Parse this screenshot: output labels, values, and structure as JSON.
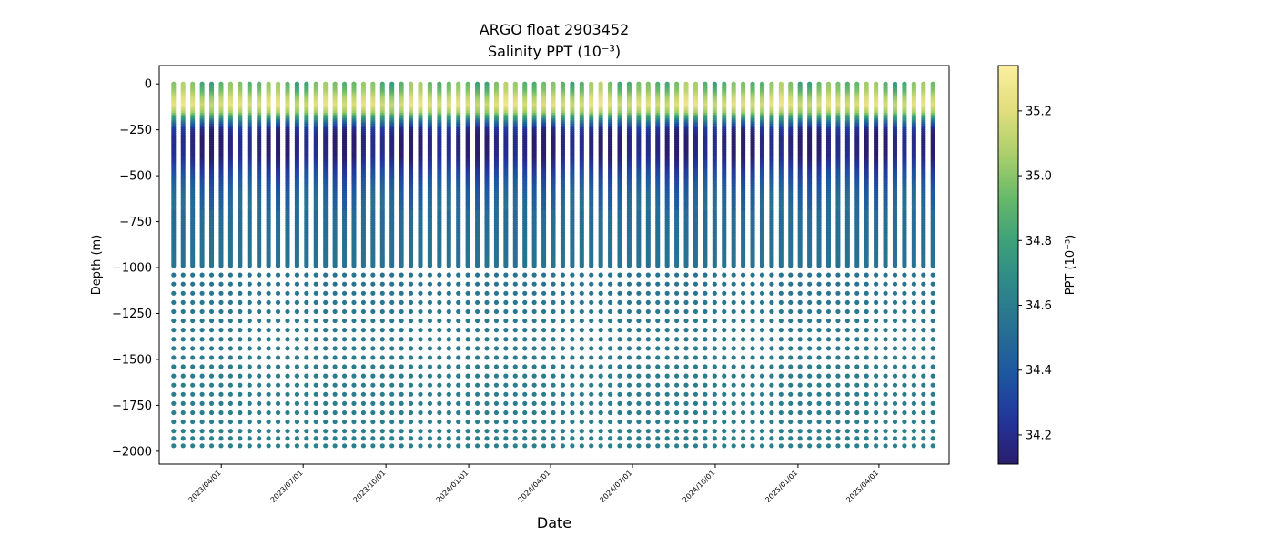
{
  "chart_data": {
    "type": "scatter",
    "title": "ARGO float 2903452",
    "subtitle": "Salinity PPT (10⁻³)",
    "xlabel": "Date",
    "ylabel": "Depth (m)",
    "colorbar_label": "PPT (10⁻³)",
    "x_range": [
      "2023-01-22",
      "2025-06-18"
    ],
    "ylim": [
      -2070,
      100
    ],
    "color_range": [
      34.11,
      35.34
    ],
    "colormap": "haline",
    "colormap_stops": [
      "#2a1d6b",
      "#23359b",
      "#1d56a0",
      "#276e93",
      "#2d878a",
      "#3ca07a",
      "#67b96a",
      "#abcf6b",
      "#e1de7d",
      "#fcef9e"
    ],
    "grid": false,
    "legend": "none",
    "x_ticks": [
      {
        "date": "2023-04-01",
        "label": "2023/04/01"
      },
      {
        "date": "2023-07-01",
        "label": "2023/07/01"
      },
      {
        "date": "2023-10-01",
        "label": "2023/10/01"
      },
      {
        "date": "2024-01-01",
        "label": "2024/01/01"
      },
      {
        "date": "2024-04-01",
        "label": "2024/04/01"
      },
      {
        "date": "2024-07-01",
        "label": "2024/07/01"
      },
      {
        "date": "2024-10-01",
        "label": "2024/10/01"
      },
      {
        "date": "2025-01-01",
        "label": "2025/01/01"
      },
      {
        "date": "2025-04-01",
        "label": "2025/04/01"
      }
    ],
    "y_ticks": [
      {
        "value": 0,
        "label": "0"
      },
      {
        "value": -250,
        "label": "−250"
      },
      {
        "value": -500,
        "label": "−500"
      },
      {
        "value": -750,
        "label": "−750"
      },
      {
        "value": -1000,
        "label": "−1000"
      },
      {
        "value": -1250,
        "label": "−1250"
      },
      {
        "value": -1500,
        "label": "−1500"
      },
      {
        "value": -1750,
        "label": "−1750"
      },
      {
        "value": -2000,
        "label": "−2000"
      }
    ],
    "colorbar_ticks": [
      {
        "value": 34.2,
        "label": "34.2"
      },
      {
        "value": 34.4,
        "label": "34.4"
      },
      {
        "value": 34.6,
        "label": "34.6"
      },
      {
        "value": 34.8,
        "label": "34.8"
      },
      {
        "value": 35.0,
        "label": "35.0"
      },
      {
        "value": 35.2,
        "label": "35.2"
      }
    ],
    "profiles": {
      "first_date": "2023-02-07",
      "last_date": "2025-05-31",
      "count": 81,
      "spacing_days": 10.5
    },
    "depth_levels_m": [
      0,
      -10,
      -20,
      -30,
      -40,
      -50,
      -60,
      -70,
      -80,
      -90,
      -100,
      -110,
      -120,
      -130,
      -140,
      -150,
      -160,
      -170,
      -180,
      -190,
      -200,
      -210,
      -220,
      -230,
      -240,
      -250,
      -260,
      -270,
      -280,
      -290,
      -300,
      -310,
      -320,
      -330,
      -340,
      -350,
      -360,
      -370,
      -380,
      -390,
      -400,
      -410,
      -420,
      -430,
      -440,
      -450,
      -460,
      -470,
      -480,
      -490,
      -500,
      -510,
      -520,
      -530,
      -540,
      -550,
      -560,
      -570,
      -580,
      -590,
      -600,
      -610,
      -620,
      -630,
      -640,
      -650,
      -660,
      -670,
      -680,
      -690,
      -700,
      -710,
      -720,
      -730,
      -740,
      -750,
      -760,
      -770,
      -780,
      -790,
      -800,
      -810,
      -820,
      -830,
      -840,
      -850,
      -860,
      -870,
      -880,
      -890,
      -900,
      -910,
      -920,
      -930,
      -940,
      -950,
      -960,
      -970,
      -980,
      -990,
      -1040,
      -1090,
      -1140,
      -1190,
      -1240,
      -1290,
      -1340,
      -1390,
      -1440,
      -1490,
      -1540,
      -1590,
      -1640,
      -1690,
      -1740,
      -1790,
      -1840,
      -1890,
      -1930,
      -1970
    ],
    "salinity_profile_typical": [
      {
        "depth": 0,
        "ppt": 34.93
      },
      {
        "depth": -40,
        "ppt": 34.98
      },
      {
        "depth": -80,
        "ppt": 35.12
      },
      {
        "depth": -120,
        "ppt": 35.2
      },
      {
        "depth": -160,
        "ppt": 35.05
      },
      {
        "depth": -190,
        "ppt": 34.75
      },
      {
        "depth": -220,
        "ppt": 34.45
      },
      {
        "depth": -250,
        "ppt": 34.22
      },
      {
        "depth": -300,
        "ppt": 34.14
      },
      {
        "depth": -400,
        "ppt": 34.16
      },
      {
        "depth": -500,
        "ppt": 34.33
      },
      {
        "depth": -600,
        "ppt": 34.45
      },
      {
        "depth": -700,
        "ppt": 34.5
      },
      {
        "depth": -1000,
        "ppt": 34.55
      },
      {
        "depth": -1500,
        "ppt": 34.6
      },
      {
        "depth": -2000,
        "ppt": 34.62
      }
    ]
  }
}
